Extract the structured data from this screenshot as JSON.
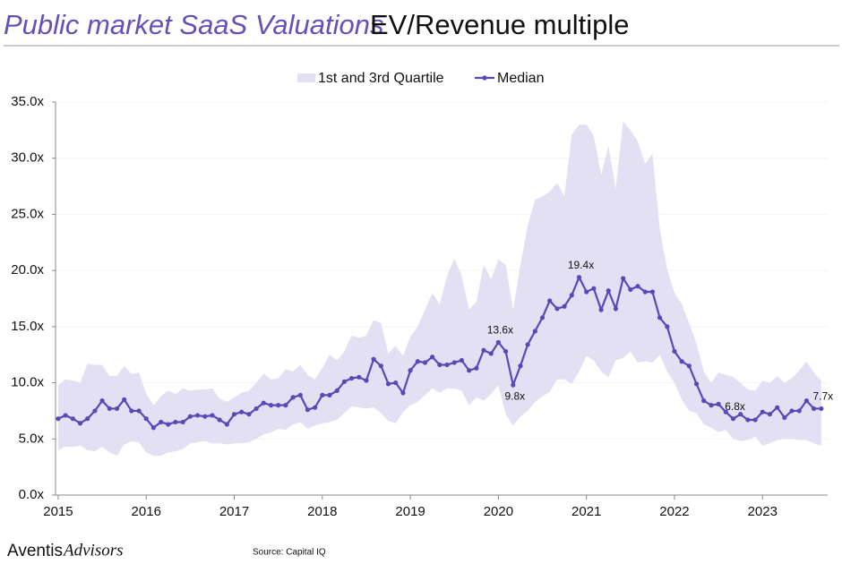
{
  "chart_data": {
    "type": "band-line",
    "title": "Public market SaaS Valuations",
    "subtitle": "EV/Revenue multiple",
    "source": "Source: Capital IQ",
    "brand": [
      "Aventis",
      "Advisors"
    ],
    "x": [
      2015,
      2015.083,
      2015.167,
      2015.25,
      2015.333,
      2015.417,
      2015.5,
      2015.583,
      2015.667,
      2015.75,
      2015.833,
      2015.917,
      2016,
      2016.083,
      2016.167,
      2016.25,
      2016.333,
      2016.417,
      2016.5,
      2016.583,
      2016.667,
      2016.75,
      2016.833,
      2016.917,
      2017,
      2017.083,
      2017.167,
      2017.25,
      2017.333,
      2017.417,
      2017.5,
      2017.583,
      2017.667,
      2017.75,
      2017.833,
      2017.917,
      2018,
      2018.083,
      2018.167,
      2018.25,
      2018.333,
      2018.417,
      2018.5,
      2018.583,
      2018.667,
      2018.75,
      2018.833,
      2018.917,
      2019,
      2019.083,
      2019.167,
      2019.25,
      2019.333,
      2019.417,
      2019.5,
      2019.583,
      2019.667,
      2019.75,
      2019.833,
      2019.917,
      2020,
      2020.083,
      2020.167,
      2020.25,
      2020.333,
      2020.417,
      2020.5,
      2020.583,
      2020.667,
      2020.75,
      2020.833,
      2020.917,
      2021,
      2021.083,
      2021.167,
      2021.25,
      2021.333,
      2021.417,
      2021.5,
      2021.583,
      2021.667,
      2021.75,
      2021.833,
      2021.917,
      2022,
      2022.083,
      2022.167,
      2022.25,
      2022.333,
      2022.417,
      2022.5,
      2022.583,
      2022.667,
      2022.75,
      2022.833,
      2022.917,
      2023,
      2023.083,
      2023.167,
      2023.25,
      2023.333,
      2023.417,
      2023.5,
      2023.583,
      2023.667
    ],
    "band": {
      "name": "1st and 3rd Quartile",
      "color": "#e3e0f3",
      "lower": [
        4.0,
        4.3,
        4.3,
        4.4,
        4.0,
        3.9,
        4.3,
        3.8,
        3.5,
        4.5,
        4.8,
        4.7,
        3.8,
        3.5,
        3.5,
        3.8,
        3.9,
        4.1,
        4.6,
        4.7,
        4.8,
        4.6,
        4.6,
        4.5,
        4.6,
        4.6,
        4.7,
        5.0,
        5.4,
        5.6,
        5.9,
        5.8,
        6.3,
        6.5,
        5.9,
        6.2,
        6.4,
        6.5,
        6.7,
        7.3,
        7.9,
        7.8,
        7.7,
        7.8,
        7.3,
        6.6,
        6.4,
        7.4,
        8.0,
        8.3,
        8.9,
        9.5,
        9.1,
        9.5,
        9.5,
        9.3,
        8.0,
        8.7,
        8.4,
        9.0,
        9.8,
        7.2,
        6.2,
        7.0,
        7.5,
        8.3,
        8.8,
        9.2,
        10.3,
        10.3,
        9.9,
        11.0,
        12.4,
        12.0,
        11.0,
        10.5,
        12.0,
        12.2,
        12.8,
        11.8,
        11.9,
        11.8,
        12.5,
        11.0,
        10.0,
        8.5,
        7.5,
        7.3,
        6.3,
        6.0,
        5.6,
        5.8,
        5.0,
        4.8,
        4.9,
        5.2,
        4.4,
        4.6,
        4.9,
        5.0,
        5.0,
        4.9,
        4.9,
        4.6,
        4.4
      ],
      "upper": [
        9.8,
        10.3,
        10.2,
        10.0,
        11.7,
        11.6,
        11.6,
        10.6,
        10.6,
        11.5,
        10.8,
        10.9,
        9.0,
        8.0,
        8.8,
        9.3,
        9.0,
        9.5,
        9.3,
        9.4,
        9.4,
        9.5,
        8.6,
        8.3,
        8.7,
        9.1,
        9.3,
        10.0,
        10.8,
        10.3,
        10.4,
        11.2,
        11.0,
        11.6,
        10.7,
        10.3,
        11.3,
        12.5,
        12.0,
        12.8,
        14.2,
        14.0,
        14.2,
        15.6,
        15.3,
        12.6,
        13.3,
        12.4,
        14.1,
        15.0,
        16.5,
        18.0,
        17.0,
        19.5,
        21.1,
        19.5,
        16.5,
        17.2,
        20.5,
        19.2,
        21.0,
        20.5,
        16.5,
        20.5,
        24.0,
        26.3,
        26.6,
        27.0,
        27.8,
        26.6,
        32.1,
        33.0,
        33.0,
        32.0,
        28.5,
        31.1,
        27.3,
        33.3,
        32.5,
        31.5,
        29.5,
        30.4,
        23.7,
        20.1,
        18.0,
        17.0,
        15.3,
        13.5,
        11.0,
        10.0,
        10.9,
        10.7,
        10.5,
        10.0,
        9.4,
        9.3,
        10.2,
        10.0,
        10.6,
        10.0,
        10.4,
        11.1,
        11.9,
        10.9,
        10.2
      ]
    },
    "series": [
      {
        "name": "Median",
        "color": "#5b47b8",
        "values": [
          6.8,
          7.1,
          6.8,
          6.4,
          6.8,
          7.5,
          8.4,
          7.7,
          7.7,
          8.5,
          7.5,
          7.5,
          6.8,
          6.0,
          6.5,
          6.3,
          6.5,
          6.5,
          7.0,
          7.1,
          7.0,
          7.1,
          6.7,
          6.3,
          7.2,
          7.4,
          7.2,
          7.7,
          8.2,
          8.0,
          8.0,
          8.0,
          8.7,
          8.9,
          7.6,
          7.8,
          8.9,
          8.9,
          9.3,
          10.1,
          10.4,
          10.5,
          10.2,
          12.1,
          11.5,
          9.9,
          10.0,
          9.1,
          11.1,
          11.9,
          11.8,
          12.3,
          11.6,
          11.6,
          11.8,
          12.0,
          11.1,
          11.3,
          12.9,
          12.6,
          13.6,
          12.8,
          9.8,
          11.5,
          13.4,
          14.6,
          15.8,
          17.3,
          16.6,
          16.8,
          17.8,
          19.4,
          18.1,
          18.4,
          16.5,
          18.2,
          16.6,
          19.3,
          18.3,
          18.6,
          18.1,
          18.1,
          15.8,
          15.0,
          12.8,
          11.9,
          11.5,
          9.9,
          8.4,
          8.0,
          8.1,
          7.4,
          6.8,
          7.2,
          6.7,
          6.7,
          7.4,
          7.2,
          7.8,
          6.9,
          7.5,
          7.5,
          8.4,
          7.7,
          7.7
        ],
        "value_labels": [
          null,
          null,
          null,
          null,
          null,
          null,
          null,
          null,
          null,
          null,
          null,
          null,
          null,
          null,
          null,
          null,
          null,
          null,
          null,
          null,
          null,
          null,
          null,
          null,
          null,
          null,
          null,
          null,
          null,
          null,
          null,
          null,
          null,
          null,
          null,
          null,
          null,
          null,
          null,
          null,
          null,
          null,
          null,
          null,
          null,
          null,
          null,
          null,
          null,
          null,
          null,
          null,
          null,
          null,
          null,
          null,
          null,
          null,
          null,
          null,
          "13.6x",
          null,
          "9.8x",
          null,
          null,
          null,
          null,
          null,
          null,
          null,
          null,
          "19.4x",
          null,
          null,
          null,
          null,
          null,
          null,
          null,
          null,
          null,
          null,
          null,
          null,
          null,
          null,
          null,
          null,
          null,
          null,
          null,
          null,
          "6.8x",
          null,
          null,
          null,
          null,
          null,
          null,
          null,
          null,
          null,
          null,
          null,
          "7.7x"
        ]
      }
    ],
    "xlim": [
      2014.97,
      2023.74
    ],
    "xticks": [
      2015,
      2016,
      2017,
      2018,
      2019,
      2020,
      2021,
      2022,
      2023
    ],
    "ylim": [
      0,
      35
    ],
    "yticks": [
      {
        "value": 0,
        "label": "0.0x"
      },
      {
        "value": 5,
        "label": "5.0x"
      },
      {
        "value": 10,
        "label": "10.0x"
      },
      {
        "value": 15,
        "label": "15.0x"
      },
      {
        "value": 20,
        "label": "20.0x"
      },
      {
        "value": 25,
        "label": "25.0x"
      },
      {
        "value": 30,
        "label": "30.0x"
      },
      {
        "value": 35,
        "label": "35.0x"
      }
    ],
    "grid": true,
    "legend": "top"
  }
}
